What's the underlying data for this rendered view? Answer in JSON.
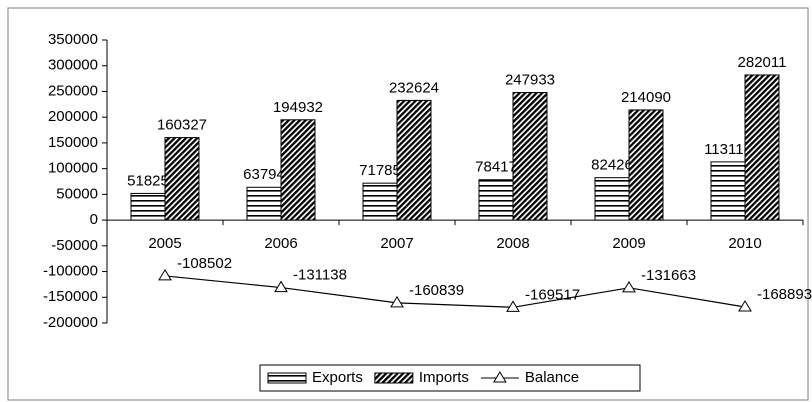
{
  "chart_data": {
    "type": "bar-line",
    "categories": [
      "2005",
      "2006",
      "2007",
      "2008",
      "2009",
      "2010"
    ],
    "series": [
      {
        "name": "Exports",
        "type": "bar",
        "pattern": "horizontal-stripes",
        "values": [
          51825,
          63794,
          71785,
          78417,
          82426,
          113118
        ]
      },
      {
        "name": "Imports",
        "type": "bar",
        "pattern": "diagonal-hatch",
        "values": [
          160327,
          194932,
          232624,
          247933,
          214090,
          282011
        ]
      },
      {
        "name": "Balance",
        "type": "line",
        "color": "#000000",
        "marker": "triangle",
        "values": [
          -108502,
          -131138,
          -160839,
          -169517,
          -131663,
          -168893
        ]
      }
    ],
    "ylim": [
      -200000,
      350000
    ],
    "yticks": [
      -200000,
      -150000,
      -100000,
      -50000,
      0,
      50000,
      100000,
      150000,
      200000,
      250000,
      300000,
      350000
    ],
    "legend": "bottom",
    "grid": false
  }
}
